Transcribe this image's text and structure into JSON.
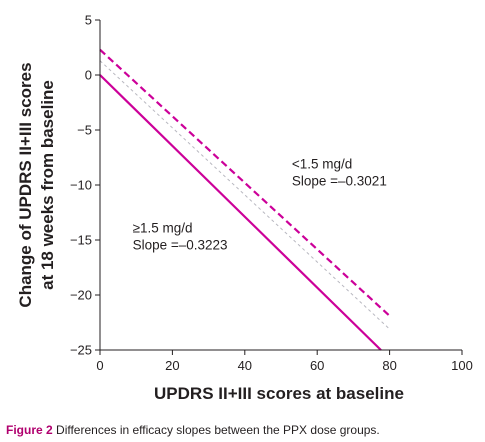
{
  "chart_data": {
    "type": "line",
    "xlabel": "UPDRS II+III scores at baseline",
    "ylabel_lines": [
      "Change of UPDRS II+III scores",
      "at 18 weeks from baseline"
    ],
    "xlim": [
      0,
      100
    ],
    "ylim": [
      -25,
      5
    ],
    "x_ticks": [
      0,
      20,
      40,
      60,
      80,
      100
    ],
    "y_ticks": [
      5,
      0,
      -5,
      -10,
      -15,
      -20,
      -25
    ],
    "y_tick_labels": [
      "5",
      "0",
      "−5",
      "−10",
      "−15",
      "−20",
      "−25"
    ],
    "grid": false,
    "series": [
      {
        "name": "<1.5 mg/d",
        "slope_label": "Slope =–0.3021",
        "color": "#cc0099",
        "style": "dashed",
        "x": [
          0,
          80
        ],
        "y": [
          2.3,
          -21.9
        ]
      },
      {
        "name": "≥1.5 mg/d",
        "slope_label": "Slope =–0.3223",
        "color": "#cc0099",
        "style": "solid",
        "x": [
          0,
          77.6
        ],
        "y": [
          0,
          -25
        ]
      },
      {
        "style": "dotted",
        "color": "#b8b8c0",
        "x": [
          0,
          80
        ],
        "y": [
          1.3,
          -23.1
        ]
      }
    ],
    "annotations": [
      {
        "lines": [
          "<1.5 mg/d",
          "Slope =–0.3021"
        ],
        "at": [
          53,
          -8.5
        ]
      },
      {
        "lines": [
          "≥1.5 mg/d",
          "Slope =–0.3223"
        ],
        "at": [
          9,
          -14.3
        ]
      }
    ]
  },
  "caption": {
    "label": "Figure 2",
    "text": " Differences in efficacy slopes between the PPX dose groups."
  }
}
